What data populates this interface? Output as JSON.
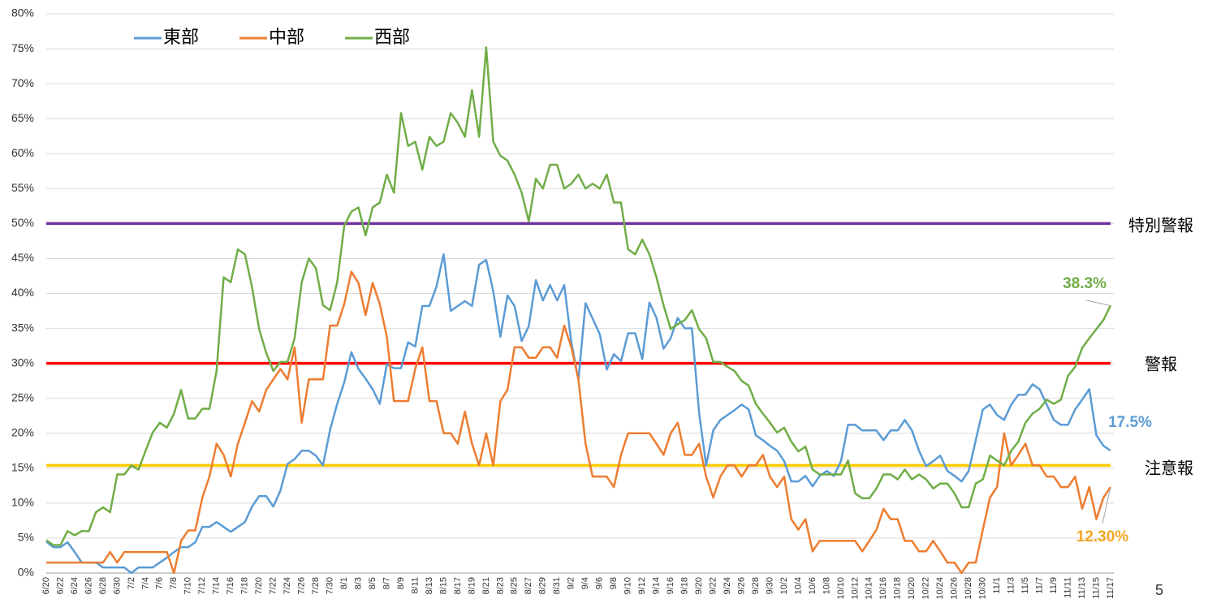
{
  "chart_data": {
    "type": "line",
    "categories": [
      "6/20",
      null,
      "6/22",
      null,
      "6/24",
      null,
      "6/26",
      null,
      "6/28",
      null,
      "6/30",
      null,
      "7/2",
      null,
      "7/4",
      null,
      "7/6",
      null,
      "7/8",
      null,
      "7/10",
      null,
      "7/12",
      null,
      "7/14",
      null,
      "7/16",
      null,
      "7/18",
      null,
      "7/20",
      null,
      "7/22",
      null,
      "7/24",
      null,
      "7/26",
      null,
      "7/28",
      null,
      "7/30",
      null,
      "8/1",
      null,
      "8/3",
      null,
      "8/5",
      null,
      "8/7",
      null,
      "8/9",
      null,
      "8/11",
      null,
      "8/13",
      null,
      "8/15",
      null,
      "8/17",
      null,
      "8/19",
      null,
      "8/21",
      null,
      "8/23",
      null,
      "8/25",
      null,
      "8/27",
      null,
      "8/29",
      null,
      "8/31",
      null,
      "9/2",
      null,
      "9/4",
      null,
      "9/6",
      null,
      "9/8",
      null,
      "9/10",
      null,
      "9/12",
      null,
      "9/14",
      null,
      "9/16",
      null,
      "9/18",
      null,
      "9/20",
      null,
      "9/22",
      null,
      "9/24",
      null,
      "9/26",
      null,
      "9/28",
      null,
      "9/30",
      null,
      "10/2",
      null,
      "10/4",
      null,
      "10/6",
      null,
      "10/8",
      null,
      "10/10",
      null,
      "10/12",
      null,
      "10/14",
      null,
      "10/16",
      null,
      "10/18",
      null,
      "10/20",
      null,
      "10/22",
      null,
      "10/24",
      null,
      "10/26",
      null,
      "10/28",
      null,
      "10/30",
      null,
      "11/1",
      null,
      "11/3",
      null,
      "11/5",
      null,
      "11/7",
      null,
      "11/9",
      null,
      "11/11",
      null,
      "11/13",
      null,
      "11/15",
      null,
      "11/17"
    ],
    "series": [
      {
        "name": "東部",
        "color": "#5b9bd5",
        "values": [
          4.5,
          3.7,
          3.7,
          4.4,
          3,
          1.5,
          1.5,
          1.5,
          0.8,
          0.8,
          0.8,
          0.8,
          0,
          0.8,
          0.8,
          0.8,
          1.5,
          2.2,
          3,
          3.7,
          3.7,
          4.4,
          6.6,
          6.6,
          7.3,
          6.6,
          5.9,
          6.6,
          7.3,
          9.5,
          11,
          11,
          9.5,
          11.8,
          15.6,
          16.3,
          17.5,
          17.5,
          16.8,
          15.4,
          20.5,
          24.2,
          27.3,
          31.6,
          29.2,
          27.8,
          26.3,
          24.2,
          29.9,
          29.3,
          29.3,
          33,
          32.4,
          38.2,
          38.2,
          41,
          45.6,
          37.5,
          38.2,
          38.9,
          38.2,
          44.1,
          44.8,
          40.3,
          33.8,
          39.7,
          38.2,
          33.2,
          35.3,
          41.9,
          39,
          41.2,
          39,
          41.2,
          33,
          27.6,
          38.6,
          36.4,
          34.2,
          29.1,
          31.3,
          30.3,
          34.3,
          34.3,
          30.6,
          38.7,
          36.5,
          32.1,
          33.6,
          36.5,
          35,
          35,
          23,
          15.4,
          20.4,
          21.9,
          22.6,
          23.3,
          24.1,
          23.4,
          19.7,
          19,
          18.2,
          17.5,
          16,
          13.1,
          13.1,
          13.9,
          12.4,
          13.9,
          14.6,
          13.9,
          16,
          21.2,
          21.2,
          20.4,
          20.4,
          20.4,
          19,
          20.4,
          20.4,
          21.9,
          20.4,
          17.5,
          15.3,
          16,
          16.8,
          14.6,
          13.9,
          13.1,
          14.6,
          19,
          23.4,
          24.1,
          22.6,
          21.9,
          24.1,
          25.5,
          25.5,
          27,
          26.3,
          24.1,
          21.9,
          21.2,
          21.2,
          23.4,
          24.8,
          26.3,
          19.7,
          18.2,
          17.5
        ]
      },
      {
        "name": "中部",
        "color": "#ed7d31",
        "values": [
          1.5,
          1.5,
          1.5,
          1.5,
          1.5,
          1.5,
          1.5,
          1.5,
          1.5,
          3,
          1.5,
          3,
          3,
          3,
          3,
          3,
          3,
          3,
          0,
          4.6,
          6.1,
          6.1,
          10.8,
          13.8,
          18.5,
          16.9,
          13.8,
          18.5,
          21.5,
          24.6,
          23.1,
          26.2,
          27.7,
          29.2,
          27.7,
          32.3,
          21.5,
          27.7,
          27.7,
          27.7,
          35.4,
          35.4,
          38.5,
          43.1,
          41.5,
          36.9,
          41.5,
          38.5,
          33.8,
          24.6,
          24.6,
          24.6,
          29.2,
          32.3,
          24.6,
          24.6,
          20,
          20,
          18.5,
          23.1,
          18.5,
          15.4,
          20,
          15.4,
          24.6,
          26.2,
          32.3,
          32.3,
          30.8,
          30.8,
          32.3,
          32.3,
          30.8,
          35.4,
          32.3,
          27.7,
          18.5,
          13.8,
          13.8,
          13.8,
          12.3,
          16.9,
          20,
          20,
          20,
          20,
          18.5,
          16.9,
          20,
          21.5,
          16.9,
          16.9,
          18.5,
          13.8,
          10.8,
          13.8,
          15.4,
          15.4,
          13.8,
          15.4,
          15.4,
          16.9,
          13.8,
          12.3,
          13.8,
          7.7,
          6.2,
          7.7,
          3.1,
          4.6,
          4.6,
          4.6,
          4.6,
          4.6,
          4.6,
          3.1,
          4.6,
          6.2,
          9.2,
          7.7,
          7.7,
          4.6,
          4.6,
          3.1,
          3.1,
          4.6,
          3.1,
          1.5,
          1.5,
          0,
          1.5,
          1.5,
          6.2,
          10.8,
          12.3,
          20,
          15.4,
          16.9,
          18.5,
          15.4,
          15.4,
          13.8,
          13.8,
          12.3,
          12.3,
          13.8,
          9.2,
          12.3,
          7.7,
          10.8,
          12.3
        ]
      },
      {
        "name": "西部",
        "color": "#70ad47",
        "values": [
          4.7,
          4,
          4,
          6,
          5.4,
          6,
          6,
          8.7,
          9.4,
          8.7,
          14.1,
          14.1,
          15.4,
          14.8,
          17.5,
          20.1,
          21.5,
          20.8,
          22.8,
          26.2,
          22.1,
          22.1,
          23.5,
          23.5,
          28.9,
          42.3,
          41.6,
          46.3,
          45.6,
          40.9,
          34.9,
          31.5,
          28.9,
          30.2,
          30.2,
          33.6,
          41.6,
          45,
          43.6,
          38.3,
          37.6,
          41.6,
          49.7,
          51.7,
          52.3,
          48.3,
          52.3,
          53,
          57,
          54.4,
          65.8,
          61.1,
          61.7,
          57.7,
          62.4,
          61.1,
          61.7,
          65.8,
          64.4,
          62.4,
          69.1,
          62.4,
          75.2,
          61.7,
          59.7,
          59,
          57,
          54.4,
          50.3,
          56.4,
          55,
          58.4,
          58.4,
          55,
          55.7,
          57,
          55,
          55.7,
          55,
          57,
          53,
          53,
          46.3,
          45.6,
          47.7,
          45.6,
          42.3,
          38.3,
          34.9,
          35.6,
          36.2,
          37.6,
          34.9,
          33.6,
          30.2,
          30.2,
          29.5,
          28.9,
          27.5,
          26.8,
          24.2,
          22.8,
          21.5,
          20.1,
          20.8,
          18.8,
          17.4,
          18.1,
          14.8,
          14.1,
          14.1,
          14.1,
          14.1,
          16.1,
          11.4,
          10.7,
          10.7,
          12.1,
          14.1,
          14.1,
          13.4,
          14.8,
          13.4,
          14.1,
          13.4,
          12.1,
          12.8,
          12.8,
          11.4,
          9.4,
          9.4,
          12.8,
          13.4,
          16.8,
          16.1,
          15.4,
          17.5,
          18.8,
          21.5,
          22.8,
          23.5,
          24.8,
          24.2,
          24.8,
          28.2,
          29.5,
          32.2,
          33.6,
          34.9,
          36.2,
          38.3
        ]
      }
    ],
    "ylim": [
      0,
      80
    ],
    "yticks": [
      {
        "value": 0,
        "label": "0%"
      },
      {
        "value": 5,
        "label": "5%"
      },
      {
        "value": 10,
        "label": "10%"
      },
      {
        "value": 15,
        "label": "15%"
      },
      {
        "value": 20,
        "label": "20%"
      },
      {
        "value": 25,
        "label": "25%"
      },
      {
        "value": 30,
        "label": "30%"
      },
      {
        "value": 35,
        "label": "35%"
      },
      {
        "value": 40,
        "label": "40%"
      },
      {
        "value": 45,
        "label": "45%"
      },
      {
        "value": 50,
        "label": "50%"
      },
      {
        "value": 55,
        "label": "55%"
      },
      {
        "value": 60,
        "label": "60%"
      },
      {
        "value": 65,
        "label": "65%"
      },
      {
        "value": 70,
        "label": "70%"
      },
      {
        "value": 75,
        "label": "75%"
      },
      {
        "value": 80,
        "label": "80%"
      }
    ],
    "grid": true,
    "legend": "top-left",
    "reference_lines": [
      {
        "label": "特別警報",
        "value": 50,
        "color": "#7030a0"
      },
      {
        "label": "警報",
        "value": 30,
        "color": "#ff0000"
      },
      {
        "label": "注意報",
        "value": 15.4,
        "color": "#ffcc00"
      }
    ],
    "annotations": [
      {
        "text": "38.3%",
        "color": "#70ad47"
      },
      {
        "text": "17.5%",
        "color": "#5b9bd5"
      },
      {
        "text": "12.30%",
        "color": "#f5a623"
      }
    ]
  },
  "footer": {
    "page_number": "5"
  }
}
